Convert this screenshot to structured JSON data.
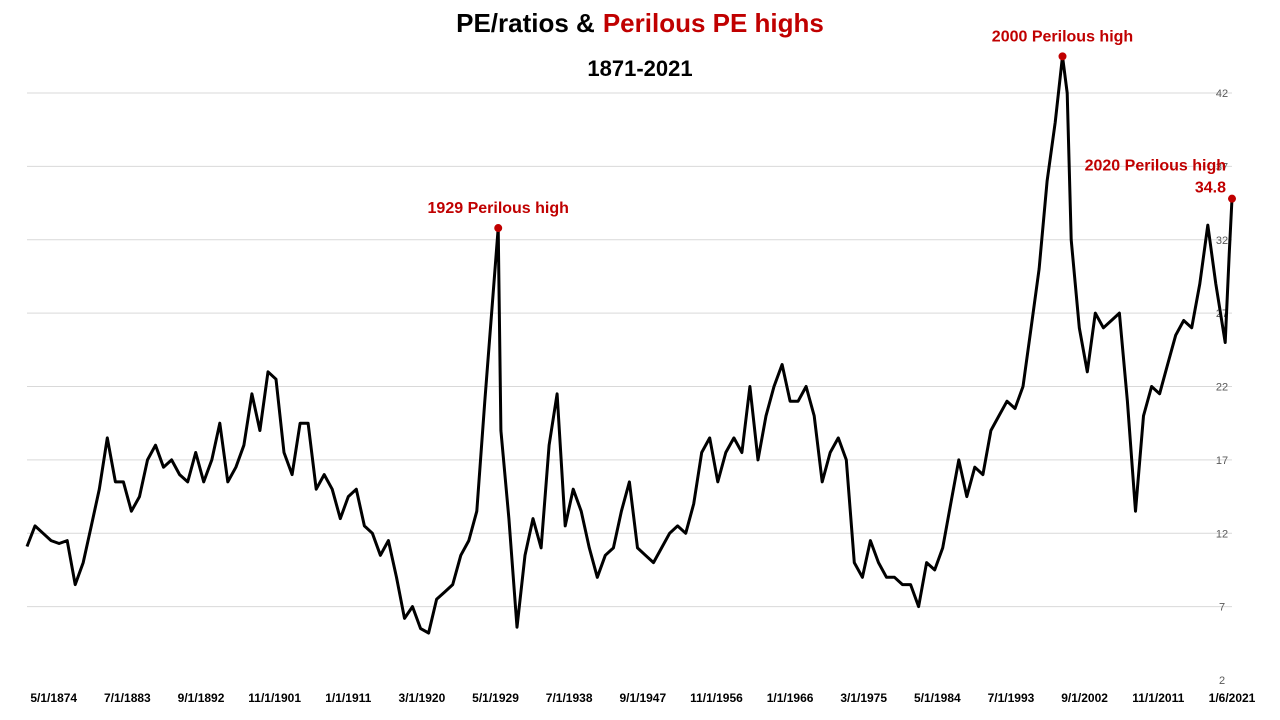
{
  "chart_data": {
    "type": "line",
    "title": "PE/ratios &",
    "title_highlight": "Perilous PE highs",
    "subtitle": "1871-2021",
    "x": [
      "1/1/1871",
      "1/1/1872",
      "1/1/1873",
      "1/1/1874",
      "1/1/1875",
      "1/1/1876",
      "1/1/1877",
      "1/1/1878",
      "1/1/1879",
      "1/1/1880",
      "1/1/1881",
      "1/1/1882",
      "1/1/1883",
      "1/1/1884",
      "1/1/1885",
      "1/1/1886",
      "1/1/1887",
      "1/1/1888",
      "1/1/1889",
      "1/1/1890",
      "1/1/1891",
      "1/1/1892",
      "1/1/1893",
      "1/1/1894",
      "1/1/1895",
      "1/1/1896",
      "1/1/1897",
      "1/1/1898",
      "1/1/1899",
      "1/1/1900",
      "1/1/1901",
      "1/1/1902",
      "1/1/1903",
      "1/1/1904",
      "1/1/1905",
      "1/1/1906",
      "1/1/1907",
      "1/1/1908",
      "1/1/1909",
      "1/1/1910",
      "1/1/1911",
      "1/1/1912",
      "1/1/1913",
      "1/1/1914",
      "1/1/1915",
      "1/1/1916",
      "1/1/1917",
      "1/1/1918",
      "1/1/1919",
      "1/1/1920",
      "1/1/1921",
      "1/1/1922",
      "1/1/1923",
      "1/1/1924",
      "1/1/1925",
      "1/1/1926",
      "1/1/1927",
      "1/1/1928",
      "9/1/1929",
      "1/1/1930",
      "1/1/1931",
      "1/1/1932",
      "1/1/1933",
      "1/1/1934",
      "1/1/1935",
      "1/1/1936",
      "1/1/1937",
      "1/1/1938",
      "1/1/1939",
      "1/1/1940",
      "1/1/1941",
      "1/1/1942",
      "1/1/1943",
      "1/1/1944",
      "1/1/1945",
      "1/1/1946",
      "1/1/1947",
      "1/1/1948",
      "1/1/1949",
      "1/1/1950",
      "1/1/1951",
      "1/1/1952",
      "1/1/1953",
      "1/1/1954",
      "1/1/1955",
      "1/1/1956",
      "1/1/1957",
      "1/1/1958",
      "1/1/1959",
      "1/1/1960",
      "1/1/1961",
      "1/1/1962",
      "1/1/1963",
      "1/1/1964",
      "1/1/1965",
      "1/1/1966",
      "1/1/1967",
      "1/1/1968",
      "1/1/1969",
      "1/1/1970",
      "1/1/1971",
      "1/1/1972",
      "1/1/1973",
      "1/1/1974",
      "1/1/1975",
      "1/1/1976",
      "1/1/1977",
      "1/1/1978",
      "1/1/1979",
      "1/1/1980",
      "1/1/1981",
      "1/1/1982",
      "1/1/1983",
      "1/1/1984",
      "1/1/1985",
      "1/1/1986",
      "1/1/1987",
      "1/1/1988",
      "1/1/1989",
      "1/1/1990",
      "1/1/1991",
      "1/1/1992",
      "1/1/1993",
      "1/1/1994",
      "1/1/1995",
      "1/1/1996",
      "1/1/1997",
      "1/1/1998",
      "1/1/1999",
      "12/1/1999",
      "7/1/2000",
      "1/1/2001",
      "1/1/2002",
      "1/1/2003",
      "1/1/2004",
      "1/1/2005",
      "1/1/2006",
      "1/1/2007",
      "1/1/2008",
      "1/1/2009",
      "1/1/2010",
      "1/1/2011",
      "1/1/2012",
      "1/1/2013",
      "1/1/2014",
      "1/1/2015",
      "1/1/2016",
      "1/1/2017",
      "1/1/2018",
      "1/1/2019",
      "3/1/2020",
      "9/1/2020",
      "1/6/2021"
    ],
    "series": [
      {
        "color": "#000000",
        "values": [
          11.1,
          12.5,
          12,
          11.5,
          11.3,
          11.5,
          8.5,
          10,
          12.5,
          15,
          18.5,
          15.5,
          15.5,
          13.5,
          14.5,
          17,
          18,
          16.5,
          17,
          16,
          15.5,
          17.5,
          15.5,
          17,
          19.5,
          15.5,
          16.5,
          18,
          21.5,
          19,
          23,
          22.5,
          17.5,
          16,
          19.5,
          19.5,
          15,
          16,
          15,
          13,
          14.5,
          15,
          12.5,
          12,
          10.5,
          11.5,
          9,
          6.2,
          7,
          5.5,
          5.2,
          7.5,
          8,
          8.5,
          10.5,
          11.5,
          13.5,
          21,
          32.8,
          19,
          13,
          5.6,
          10.5,
          13,
          11,
          18,
          21.5,
          12.5,
          15,
          13.5,
          11,
          9,
          10.5,
          11,
          13.5,
          15.5,
          11,
          10.5,
          10,
          11,
          12,
          12.5,
          12,
          14,
          17.5,
          18.5,
          15.5,
          17.5,
          18.5,
          17.5,
          22,
          17,
          20,
          22,
          23.5,
          21,
          21,
          22,
          20,
          15.5,
          17.5,
          18.5,
          17,
          10,
          9,
          11.5,
          10,
          9,
          9,
          8.5,
          8.5,
          7,
          10,
          9.5,
          11,
          14,
          17,
          14.5,
          16.5,
          16,
          19,
          20,
          21,
          20.5,
          22,
          26,
          30,
          36,
          40,
          44.5,
          42,
          32,
          26,
          23,
          27,
          26,
          26.5,
          27,
          21,
          13.5,
          20,
          22,
          21.5,
          23.5,
          25.5,
          26.5,
          26,
          29,
          33,
          29,
          25,
          31,
          34.8
        ]
      }
    ],
    "xlim": [
      "1/1/1871",
      "1/6/2021"
    ],
    "xticks": [
      "5/1/1874",
      "7/1/1883",
      "9/1/1892",
      "11/1/1901",
      "1/1/1911",
      "3/1/1920",
      "5/1/1929",
      "7/1/1938",
      "9/1/1947",
      "11/1/1956",
      "1/1/1966",
      "3/1/1975",
      "5/1/1984",
      "7/1/1993",
      "9/1/2002",
      "11/1/2011",
      "1/6/2021"
    ],
    "ylim": [
      2,
      45
    ],
    "yticks": [
      2,
      7,
      12,
      17,
      22,
      27,
      32,
      37,
      42
    ],
    "grid": true,
    "highlight_color": "#c00000",
    "annotations": [
      {
        "label": "1929 Perilous high",
        "x": "9/1/1929"
      },
      {
        "label": "2000 Perilous high",
        "x": "12/1/1999"
      },
      {
        "label": "2020 Perilous high",
        "x": "1/6/2021"
      }
    ]
  }
}
